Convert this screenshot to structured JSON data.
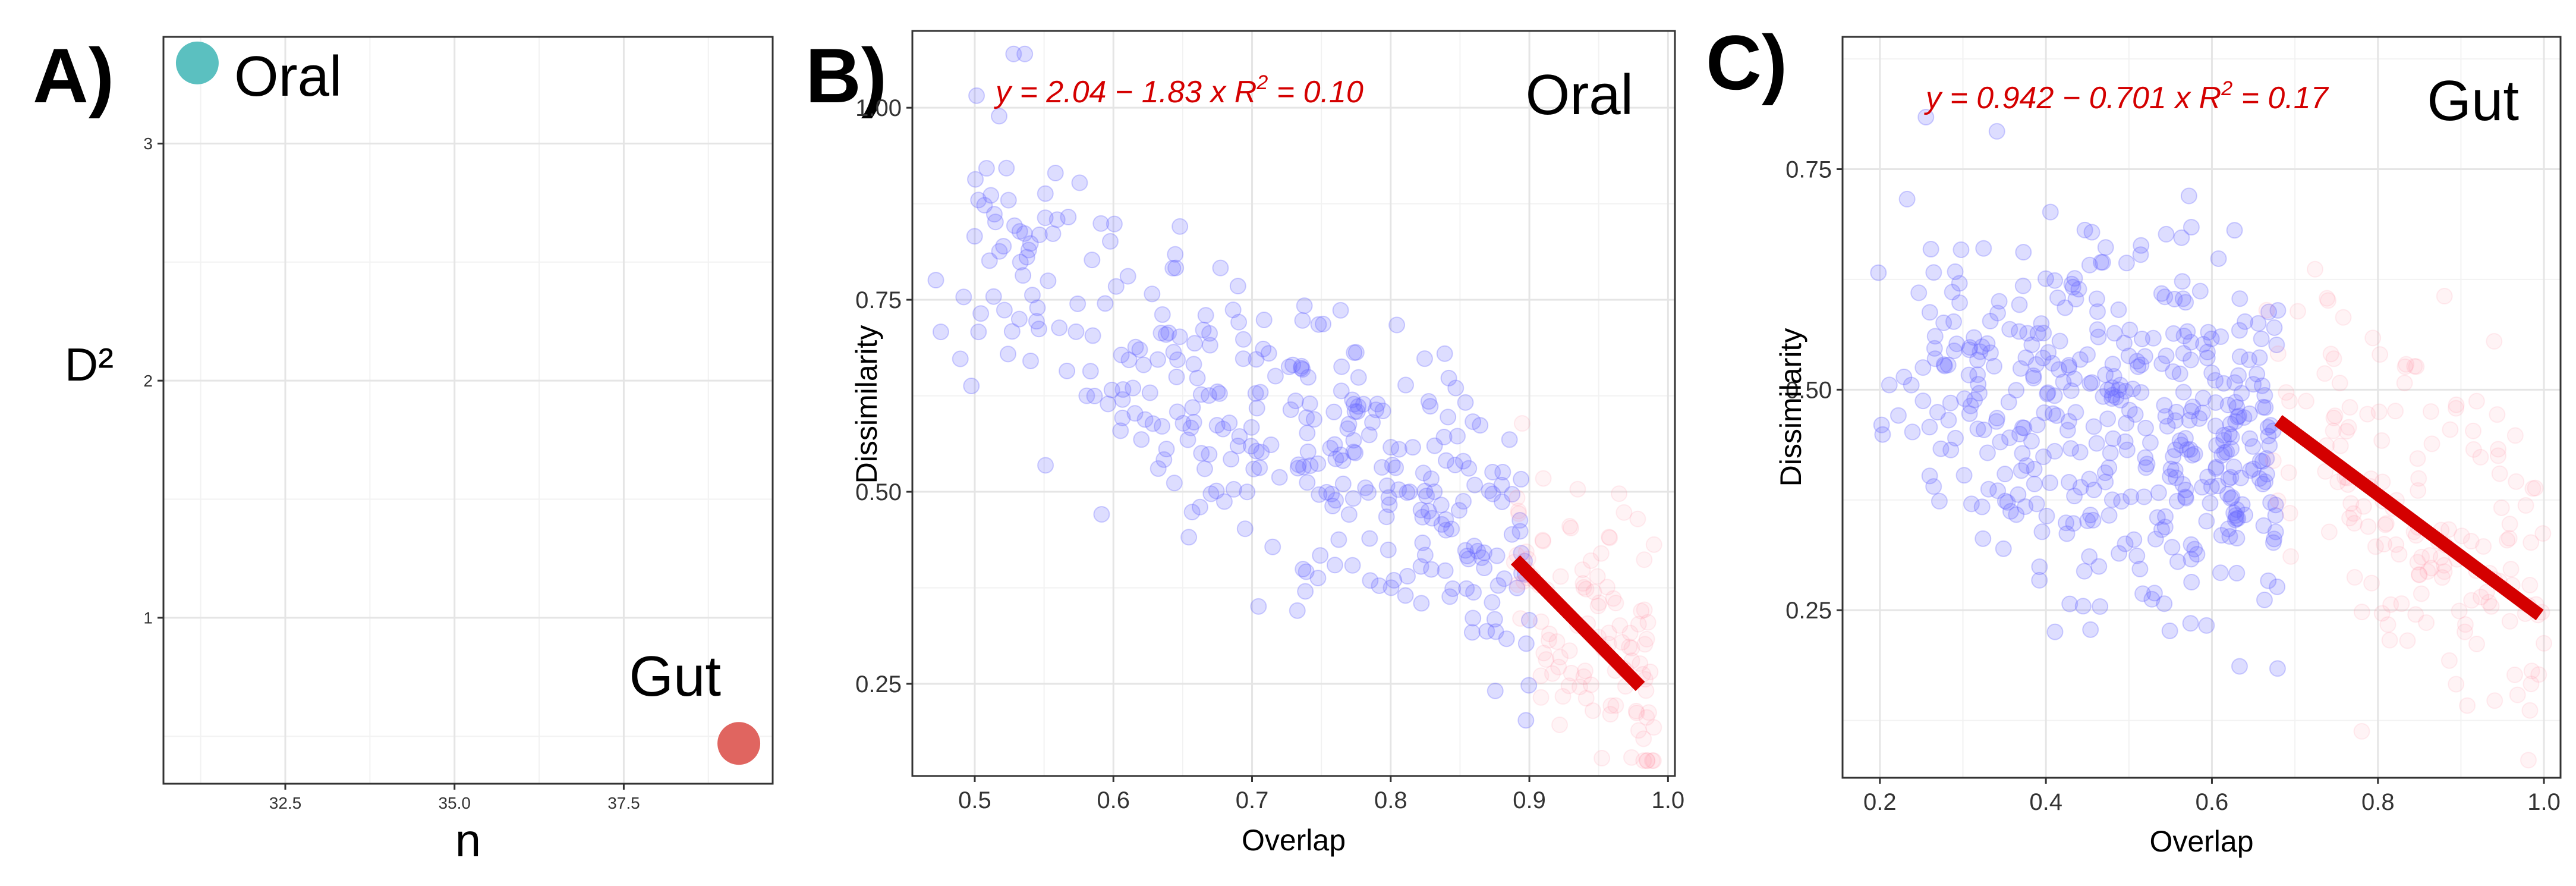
{
  "figure": {
    "panels": [
      {
        "key": "A",
        "label": "A)"
      },
      {
        "key": "B",
        "label": "B)"
      },
      {
        "key": "C",
        "label": "C)"
      }
    ]
  },
  "chart_data": [
    {
      "id": "A",
      "type": "scatter",
      "title": "",
      "xlabel": "n",
      "ylabel": "D²",
      "xlim": [
        30.7,
        39.7
      ],
      "ylim": [
        0.3,
        3.45
      ],
      "xticks": [
        32.5,
        35.0,
        37.5
      ],
      "xtick_labels": [
        "32.5",
        "35.0",
        "37.5"
      ],
      "yticks": [
        1,
        2,
        3
      ],
      "ytick_labels": [
        "1",
        "2",
        "3"
      ],
      "grid": true,
      "points": [
        {
          "label": "Oral",
          "x": 31.2,
          "y": 3.34,
          "color": "#5bc0c0"
        },
        {
          "label": "Gut",
          "x": 39.2,
          "y": 0.47,
          "color": "#e06560"
        }
      ]
    },
    {
      "id": "B",
      "type": "scatter",
      "title": "",
      "corner_label": "Oral",
      "xlabel": "Overlap",
      "ylabel": "Dissimilarity",
      "xlim": [
        0.455,
        1.005
      ],
      "ylim": [
        0.13,
        1.1
      ],
      "xticks": [
        0.5,
        0.6,
        0.7,
        0.8,
        0.9,
        1.0
      ],
      "xtick_labels": [
        "0.5",
        "0.6",
        "0.7",
        "0.8",
        "0.9",
        "1.0"
      ],
      "yticks": [
        0.25,
        0.5,
        0.75,
        1.0
      ],
      "ytick_labels": [
        "0.25",
        "0.50",
        "0.75",
        "1.00"
      ],
      "grid": true,
      "equation": {
        "prefix": "y = 2.04 − 1.83 x",
        "r2_label": "R",
        "r2_sup": "2",
        "r2_value": " = 0.10"
      },
      "fit": {
        "slope": -1.83,
        "intercept": 2.04,
        "x_range": [
          0.89,
          0.98
        ],
        "color": "#d40000"
      },
      "series": [
        {
          "name": "",
          "color": "#6666ff",
          "opacity": 0.22,
          "x_range": [
            0.47,
            0.9
          ],
          "y_mean": [
            0.85,
            0.4
          ],
          "spread": 0.1,
          "n": 340,
          "seed": 11
        },
        {
          "name": "",
          "color": "#ff8899",
          "opacity": 0.1,
          "x_range": [
            0.88,
            0.99
          ],
          "y_mean": [
            0.45,
            0.25
          ],
          "spread": 0.08,
          "n": 110,
          "seed": 23
        }
      ]
    },
    {
      "id": "C",
      "type": "scatter",
      "title": "",
      "corner_label": "Gut",
      "xlabel": "Overlap",
      "ylabel": "Dissimilarity",
      "xlim": [
        0.155,
        1.02
      ],
      "ylim": [
        0.06,
        0.9
      ],
      "xticks": [
        0.2,
        0.4,
        0.6,
        0.8,
        1.0
      ],
      "xtick_labels": [
        "0.2",
        "0.4",
        "0.6",
        "0.8",
        "1.0"
      ],
      "yticks": [
        0.25,
        0.5,
        0.75
      ],
      "ytick_labels": [
        "0.25",
        "0.50",
        "0.75"
      ],
      "grid": true,
      "equation": {
        "prefix": "y = 0.942 − 0.701 x",
        "r2_label": "R",
        "r2_sup": "2",
        "r2_value": " = 0.17"
      },
      "fit": {
        "slope": -0.701,
        "intercept": 0.942,
        "x_range": [
          0.68,
          0.995
        ],
        "color": "#d40000"
      },
      "series": [
        {
          "name": "",
          "color": "#6666ff",
          "opacity": 0.22,
          "x_range": [
            0.19,
            0.68
          ],
          "y_mean": [
            0.52,
            0.42
          ],
          "spread": 0.1,
          "n": 420,
          "seed": 37
        },
        {
          "name": "",
          "color": "#ff8899",
          "opacity": 0.1,
          "x_range": [
            0.66,
            1.0
          ],
          "y_mean": [
            0.47,
            0.27
          ],
          "spread": 0.09,
          "n": 160,
          "seed": 51
        }
      ]
    }
  ]
}
